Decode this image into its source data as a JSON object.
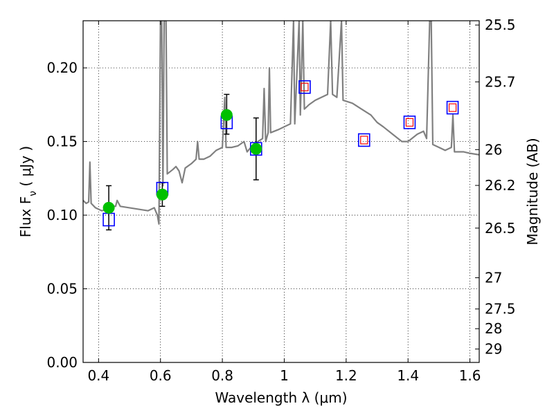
{
  "chart_data": {
    "type": "scatter",
    "xlabel": "Wavelength  λ (μm)",
    "ylabel": "Flux  F_ν  ( μJy )",
    "y2label": "Magnitude (AB)",
    "xlim": [
      0.35,
      1.63
    ],
    "ylim": [
      0.0,
      0.232
    ],
    "grid": true,
    "x_ticks": [
      0.4,
      0.6,
      0.8,
      1.0,
      1.2,
      1.4,
      1.6
    ],
    "x_tick_labels": [
      "0.4",
      "0.6",
      "0.8",
      "1",
      "1.2",
      "1.4",
      "1.6"
    ],
    "y_ticks": [
      0.0,
      0.05,
      0.1,
      0.15,
      0.2
    ],
    "y_tick_labels": [
      "0.00",
      "0.05",
      "0.10",
      "0.15",
      "0.20"
    ],
    "y2_ticks": [
      {
        "label": "25.5",
        "flux": 0.2291
      },
      {
        "label": "25.7",
        "flux": 0.1905
      },
      {
        "label": "26",
        "flux": 0.1445
      },
      {
        "label": "26.2",
        "flux": 0.1202
      },
      {
        "label": "26.5",
        "flux": 0.0912
      },
      {
        "label": "27",
        "flux": 0.0575
      },
      {
        "label": "27.5",
        "flux": 0.0363
      },
      {
        "label": "28",
        "flux": 0.0229
      },
      {
        "label": "29",
        "flux": 0.0091
      }
    ],
    "colors": {
      "model": "#808080",
      "measured": "#00c000",
      "model_box": "#0000ff",
      "predicted_inner": "#ff0000",
      "errorbar": "#000000"
    },
    "series": [
      {
        "type": "line",
        "points": [
          [
            0.35,
            0.11
          ],
          [
            0.36,
            0.108
          ],
          [
            0.368,
            0.109
          ],
          [
            0.372,
            0.136
          ],
          [
            0.376,
            0.108
          ],
          [
            0.39,
            0.105
          ],
          [
            0.41,
            0.103
          ],
          [
            0.43,
            0.104
          ],
          [
            0.445,
            0.106
          ],
          [
            0.455,
            0.106
          ],
          [
            0.46,
            0.11
          ],
          [
            0.47,
            0.106
          ],
          [
            0.5,
            0.105
          ],
          [
            0.53,
            0.104
          ],
          [
            0.56,
            0.103
          ],
          [
            0.58,
            0.105
          ],
          [
            0.59,
            0.1
          ],
          [
            0.595,
            0.094
          ],
          [
            0.6,
            0.232
          ],
          [
            0.604,
            0.232
          ],
          [
            0.608,
            0.12
          ],
          [
            0.612,
            0.232
          ],
          [
            0.618,
            0.232
          ],
          [
            0.622,
            0.128
          ],
          [
            0.64,
            0.131
          ],
          [
            0.65,
            0.133
          ],
          [
            0.66,
            0.13
          ],
          [
            0.67,
            0.122
          ],
          [
            0.68,
            0.132
          ],
          [
            0.7,
            0.135
          ],
          [
            0.715,
            0.138
          ],
          [
            0.72,
            0.15
          ],
          [
            0.725,
            0.138
          ],
          [
            0.74,
            0.138
          ],
          [
            0.76,
            0.14
          ],
          [
            0.78,
            0.144
          ],
          [
            0.8,
            0.146
          ],
          [
            0.808,
            0.18
          ],
          [
            0.812,
            0.146
          ],
          [
            0.83,
            0.146
          ],
          [
            0.85,
            0.147
          ],
          [
            0.87,
            0.15
          ],
          [
            0.88,
            0.143
          ],
          [
            0.9,
            0.148
          ],
          [
            0.93,
            0.152
          ],
          [
            0.935,
            0.186
          ],
          [
            0.94,
            0.15
          ],
          [
            0.948,
            0.156
          ],
          [
            0.952,
            0.2
          ],
          [
            0.956,
            0.156
          ],
          [
            0.98,
            0.158
          ],
          [
            1.0,
            0.16
          ],
          [
            1.02,
            0.162
          ],
          [
            1.03,
            0.232
          ],
          [
            1.034,
            0.162
          ],
          [
            1.048,
            0.232
          ],
          [
            1.052,
            0.168
          ],
          [
            1.06,
            0.232
          ],
          [
            1.065,
            0.172
          ],
          [
            1.08,
            0.175
          ],
          [
            1.1,
            0.178
          ],
          [
            1.12,
            0.18
          ],
          [
            1.14,
            0.182
          ],
          [
            1.15,
            0.232
          ],
          [
            1.156,
            0.182
          ],
          [
            1.17,
            0.18
          ],
          [
            1.185,
            0.232
          ],
          [
            1.19,
            0.178
          ],
          [
            1.22,
            0.176
          ],
          [
            1.25,
            0.172
          ],
          [
            1.28,
            0.168
          ],
          [
            1.3,
            0.163
          ],
          [
            1.32,
            0.16
          ],
          [
            1.35,
            0.155
          ],
          [
            1.38,
            0.15
          ],
          [
            1.4,
            0.15
          ],
          [
            1.43,
            0.155
          ],
          [
            1.45,
            0.157
          ],
          [
            1.46,
            0.152
          ],
          [
            1.47,
            0.232
          ],
          [
            1.475,
            0.232
          ],
          [
            1.48,
            0.148
          ],
          [
            1.5,
            0.146
          ],
          [
            1.52,
            0.144
          ],
          [
            1.54,
            0.146
          ],
          [
            1.545,
            0.168
          ],
          [
            1.55,
            0.143
          ],
          [
            1.58,
            0.143
          ],
          [
            1.6,
            0.142
          ],
          [
            1.63,
            0.141
          ]
        ]
      },
      {
        "type": "scatter",
        "points": [
          {
            "x": 0.433,
            "y": 0.105,
            "yerr_low": 0.015,
            "yerr_high": 0.015
          },
          {
            "x": 0.606,
            "y": 0.114,
            "yerr_low": 0.008,
            "yerr_high": 0.008
          },
          {
            "x": 0.814,
            "y": 0.168,
            "yerr_low": 0.013,
            "yerr_high": 0.014
          },
          {
            "x": 0.909,
            "y": 0.145,
            "yerr_low": 0.021,
            "yerr_high": 0.021
          }
        ]
      },
      {
        "type": "scatter",
        "marker": "square",
        "points": [
          {
            "x": 0.433,
            "y": 0.097
          },
          {
            "x": 0.606,
            "y": 0.118
          },
          {
            "x": 0.814,
            "y": 0.163
          },
          {
            "x": 0.909,
            "y": 0.145
          },
          {
            "x": 1.066,
            "y": 0.187
          },
          {
            "x": 1.258,
            "y": 0.151
          },
          {
            "x": 1.405,
            "y": 0.163
          },
          {
            "x": 1.544,
            "y": 0.173
          }
        ]
      },
      {
        "type": "scatter",
        "marker": "square",
        "points": [
          {
            "x": 1.066,
            "y": 0.187
          },
          {
            "x": 1.258,
            "y": 0.151
          },
          {
            "x": 1.405,
            "y": 0.163
          },
          {
            "x": 1.544,
            "y": 0.173
          }
        ]
      }
    ]
  }
}
